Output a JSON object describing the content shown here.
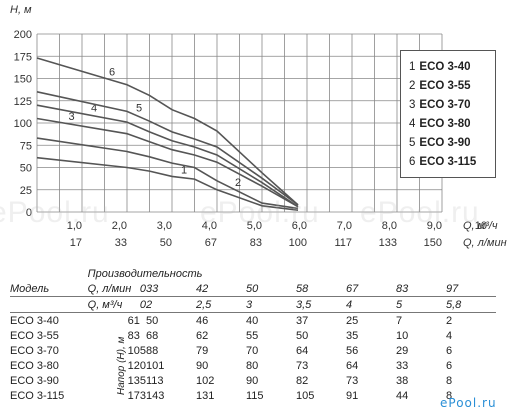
{
  "chart_data": {
    "type": "line",
    "ylabel": "Н, м",
    "xlabel_m3h": "Q, м³/ч",
    "xlabel_lmin": "Q, л/мин",
    "ylim": [
      0,
      200
    ],
    "xlim": [
      0,
      9
    ],
    "yticks": [
      "0",
      "25",
      "50",
      "75",
      "100",
      "125",
      "150",
      "175",
      "200"
    ],
    "xticks_m3h": [
      "1,0",
      "2,0",
      "3,0",
      "4,0",
      "5,0",
      "6,0",
      "7,0",
      "8,0",
      "9,0",
      "10"
    ],
    "xticks_lmin": [
      "17",
      "33",
      "50",
      "67",
      "83",
      "100",
      "117",
      "133",
      "150"
    ],
    "grid": true,
    "series": [
      {
        "name": "1",
        "x": [
          0,
          2,
          2.5,
          3,
          3.5,
          4,
          5,
          5.8
        ],
        "y": [
          61,
          50,
          46,
          40,
          37,
          25,
          7,
          2
        ]
      },
      {
        "name": "2",
        "x": [
          0,
          2,
          2.5,
          3,
          3.5,
          4,
          5,
          5.8
        ],
        "y": [
          83,
          68,
          62,
          55,
          50,
          35,
          10,
          4
        ]
      },
      {
        "name": "3",
        "x": [
          0,
          2,
          2.5,
          3,
          3.5,
          4,
          5,
          5.8
        ],
        "y": [
          105,
          88,
          79,
          70,
          64,
          56,
          29,
          6
        ]
      },
      {
        "name": "4",
        "x": [
          0,
          2,
          2.5,
          3,
          3.5,
          4,
          5,
          5.8
        ],
        "y": [
          120,
          101,
          90,
          80,
          73,
          64,
          33,
          6
        ]
      },
      {
        "name": "5",
        "x": [
          0,
          2,
          2.5,
          3,
          3.5,
          4,
          5,
          5.8
        ],
        "y": [
          135,
          113,
          102,
          90,
          82,
          73,
          38,
          8
        ]
      },
      {
        "name": "6",
        "x": [
          0,
          2,
          2.5,
          3,
          3.5,
          4,
          5,
          5.8
        ],
        "y": [
          173,
          143,
          131,
          115,
          105,
          91,
          44,
          8
        ]
      }
    ],
    "legend": [
      {
        "num": "1",
        "name": "ECO 3-40"
      },
      {
        "num": "2",
        "name": "ECO 3-55"
      },
      {
        "num": "3",
        "name": "ECO 3-70"
      },
      {
        "num": "4",
        "name": "ECO 3-80"
      },
      {
        "num": "5",
        "name": "ECO 3-90"
      },
      {
        "num": "6",
        "name": "ECO 3-115"
      }
    ],
    "legend_position": "right",
    "line_color": "#555555"
  },
  "watermarks": [
    "ePool.ru",
    "ePool.ru",
    "ePool.ru"
  ],
  "table": {
    "model_header": "Модель",
    "perf_header": "Производительность",
    "q_lmin_label": "Q, л/мин",
    "q_m3h_label": "Q, м³/ч",
    "head_label": "Напор (Н), м",
    "q_lmin": [
      "0",
      "33",
      "42",
      "50",
      "58",
      "67",
      "83",
      "97"
    ],
    "q_m3h": [
      "0",
      "2",
      "2,5",
      "3",
      "3,5",
      "4",
      "5",
      "5,8"
    ],
    "rows": [
      {
        "model": "ECO 3-40",
        "values": [
          "61",
          "50",
          "46",
          "40",
          "37",
          "25",
          "7",
          "2"
        ]
      },
      {
        "model": "ECO 3-55",
        "values": [
          "83",
          "68",
          "62",
          "55",
          "50",
          "35",
          "10",
          "4"
        ]
      },
      {
        "model": "ECO 3-70",
        "values": [
          "105",
          "88",
          "79",
          "70",
          "64",
          "56",
          "29",
          "6"
        ]
      },
      {
        "model": "ECO 3-80",
        "values": [
          "120",
          "101",
          "90",
          "80",
          "73",
          "64",
          "33",
          "6"
        ]
      },
      {
        "model": "ECO 3-90",
        "values": [
          "135",
          "113",
          "102",
          "90",
          "82",
          "73",
          "38",
          "8"
        ]
      },
      {
        "model": "ECO 3-115",
        "values": [
          "173",
          "143",
          "131",
          "115",
          "105",
          "91",
          "44",
          "8"
        ]
      }
    ]
  },
  "logo_text": "ePool.ru",
  "logo_color": "#2a8fd6"
}
